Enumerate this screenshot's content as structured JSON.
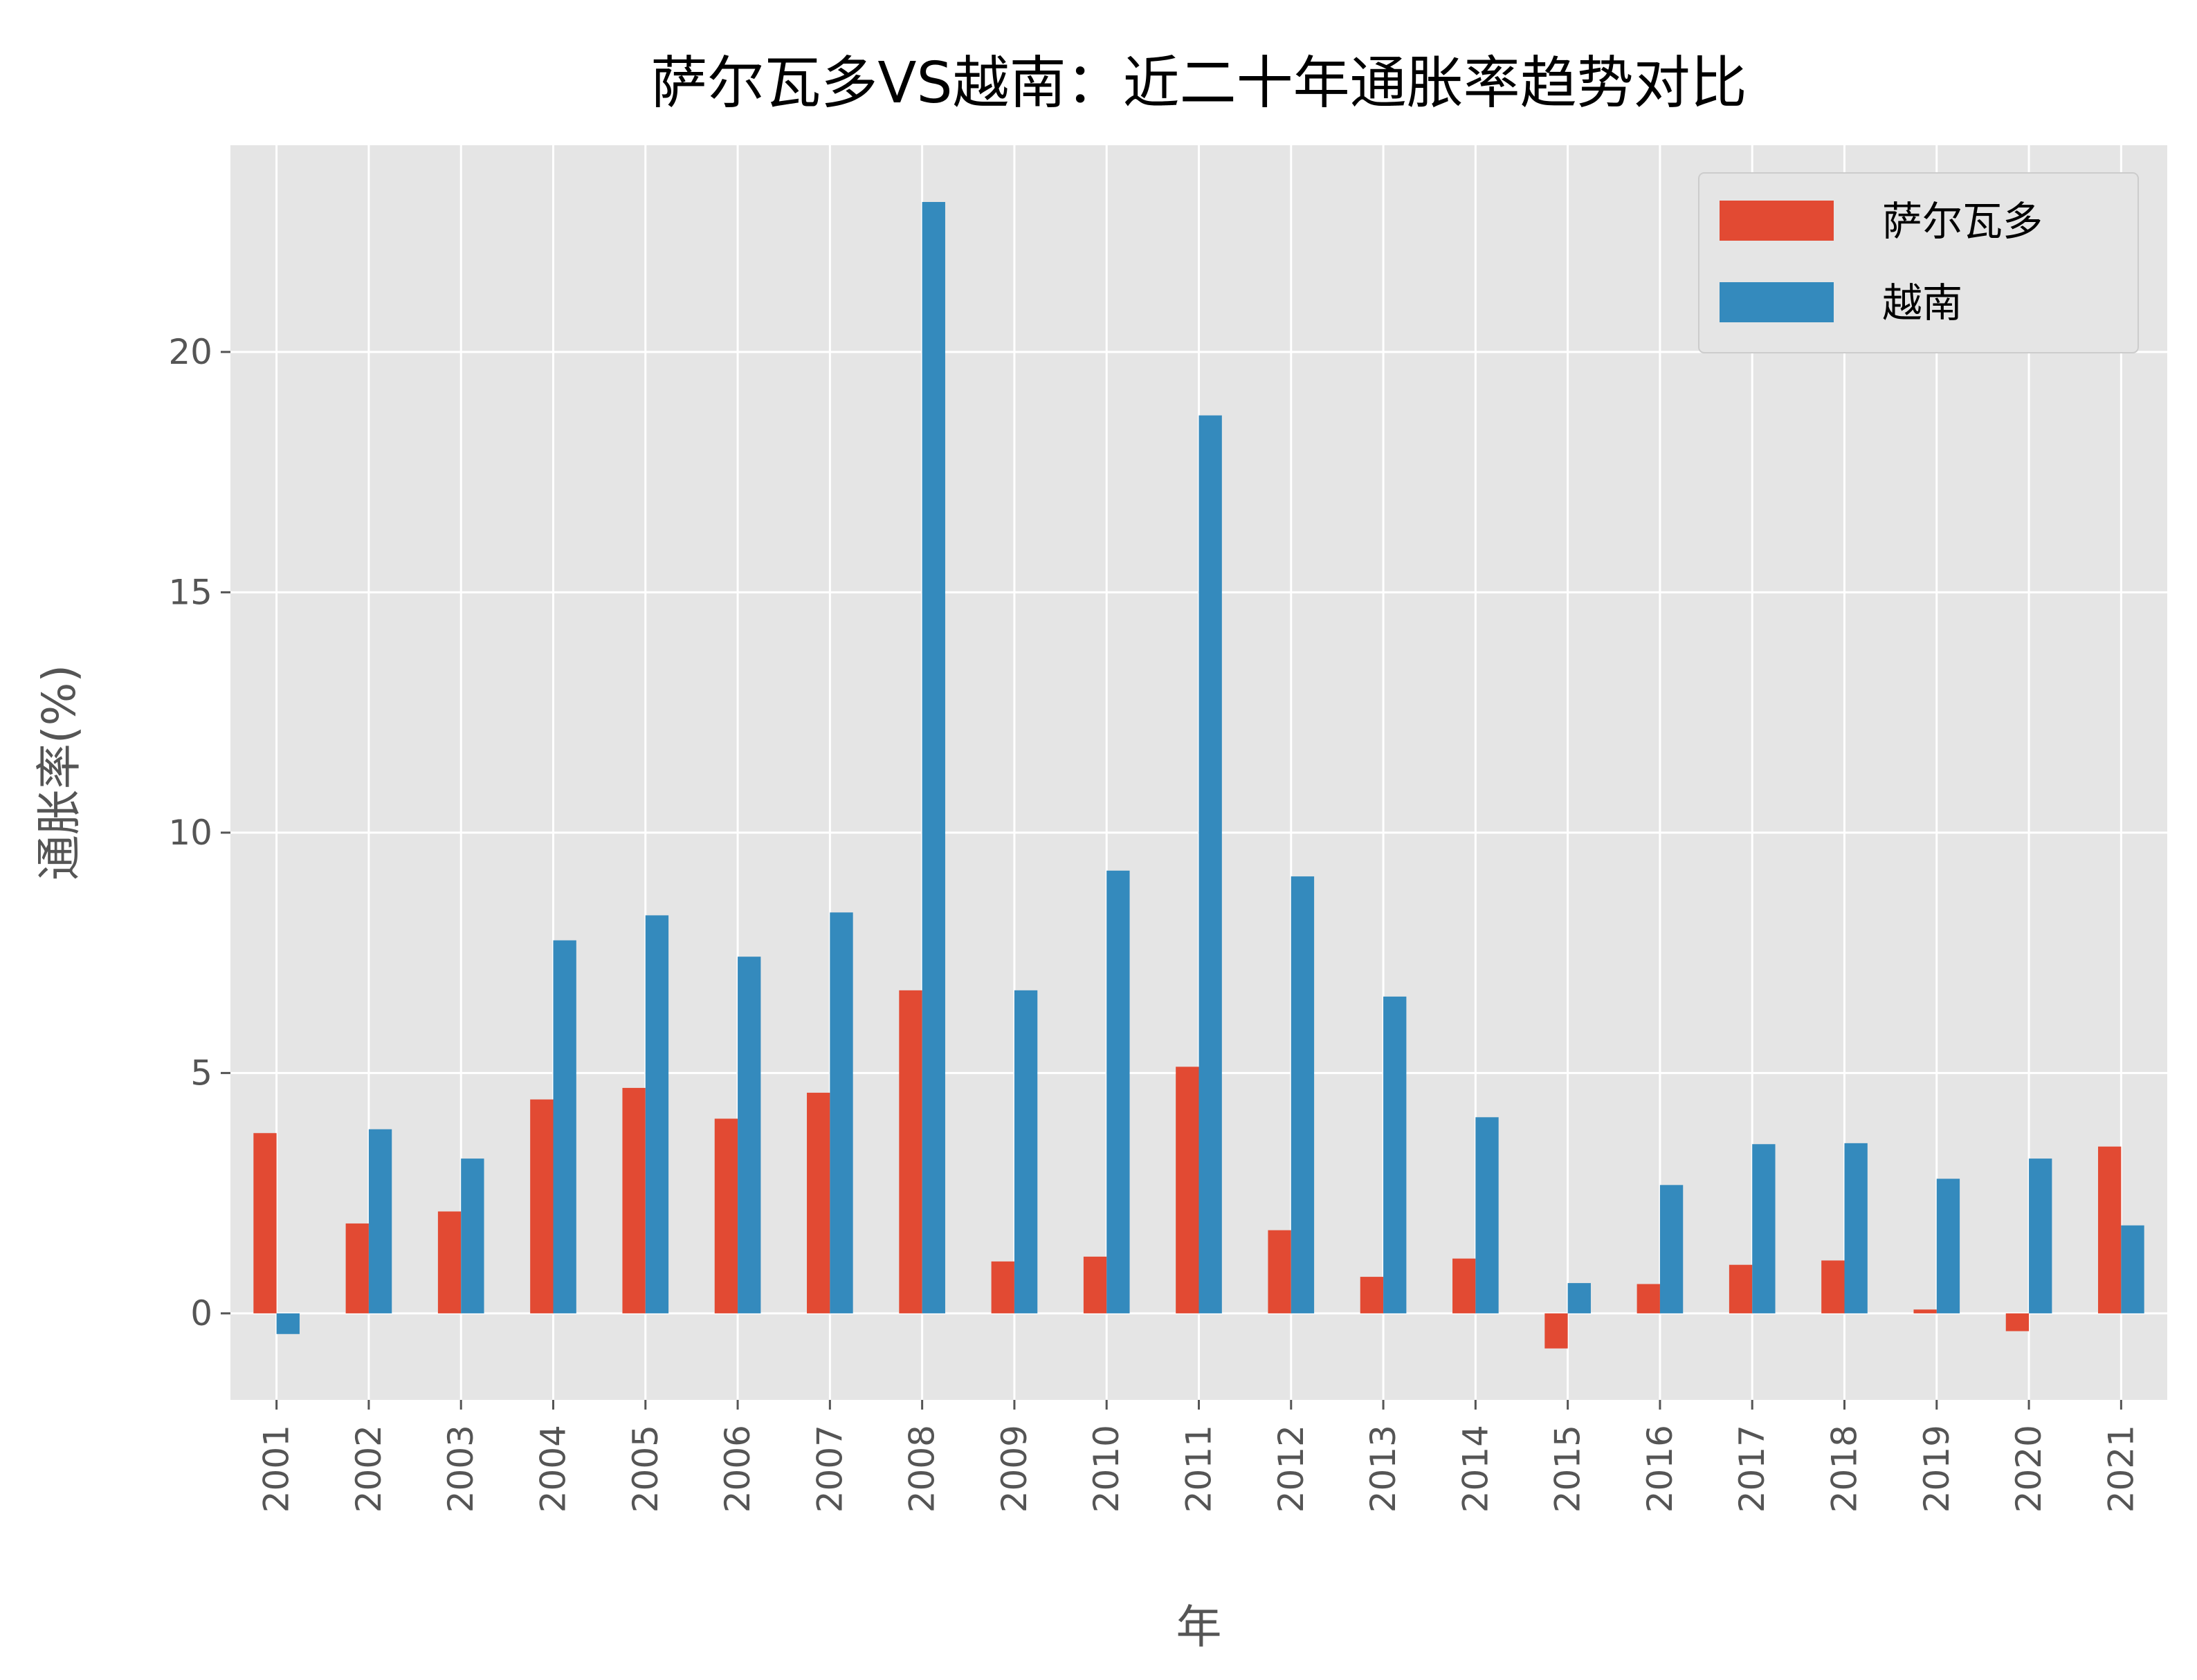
{
  "chart_data": {
    "type": "bar",
    "title": "萨尔瓦多VS越南：近二十年通胀率趋势对比",
    "xlabel": "年",
    "ylabel": "通胀率(%)",
    "categories": [
      "2001",
      "2002",
      "2003",
      "2004",
      "2005",
      "2006",
      "2007",
      "2008",
      "2009",
      "2010",
      "2011",
      "2012",
      "2013",
      "2014",
      "2015",
      "2016",
      "2017",
      "2018",
      "2019",
      "2020",
      "2021"
    ],
    "series": [
      {
        "name": "萨尔瓦多",
        "color": "#E24A33",
        "values": [
          3.75,
          1.87,
          2.12,
          4.45,
          4.69,
          4.05,
          4.59,
          6.72,
          1.08,
          1.18,
          5.13,
          1.73,
          0.76,
          1.14,
          -0.73,
          0.61,
          1.01,
          1.1,
          0.08,
          -0.37,
          3.47
        ]
      },
      {
        "name": "越南",
        "color": "#348ABD",
        "values": [
          -0.43,
          3.83,
          3.22,
          7.76,
          8.28,
          7.42,
          8.34,
          23.12,
          6.72,
          9.21,
          18.68,
          9.09,
          6.59,
          4.08,
          0.63,
          2.67,
          3.52,
          3.54,
          2.8,
          3.22,
          1.83
        ]
      }
    ],
    "ylim": [
      -1.8,
      24.3
    ],
    "yticks": [
      "0",
      "5",
      "10",
      "15",
      "20"
    ],
    "grid": true,
    "legend_position": "top-right"
  }
}
